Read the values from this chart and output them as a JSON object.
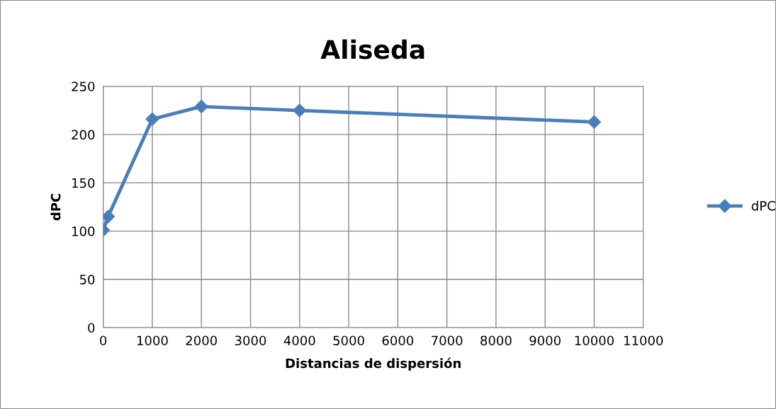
{
  "chart_data": {
    "type": "line",
    "title": "Aliseda",
    "xlabel": "Distancias de dispersión",
    "ylabel": "dPC",
    "series": [
      {
        "name": "dPC",
        "color": "#4a7ebb",
        "x": [
          0,
          100,
          1000,
          2000,
          4000,
          10000
        ],
        "values": [
          101,
          115,
          216,
          229,
          225,
          213
        ]
      }
    ],
    "xlim": [
      0,
      11000
    ],
    "xticks": [
      0,
      1000,
      2000,
      3000,
      4000,
      5000,
      6000,
      7000,
      8000,
      9000,
      10000,
      11000
    ],
    "ylim": [
      0,
      250
    ],
    "yticks": [
      0,
      50,
      100,
      150,
      200,
      250
    ],
    "grid": true,
    "legend": "right",
    "marker": "diamond",
    "line_style": "solid"
  }
}
